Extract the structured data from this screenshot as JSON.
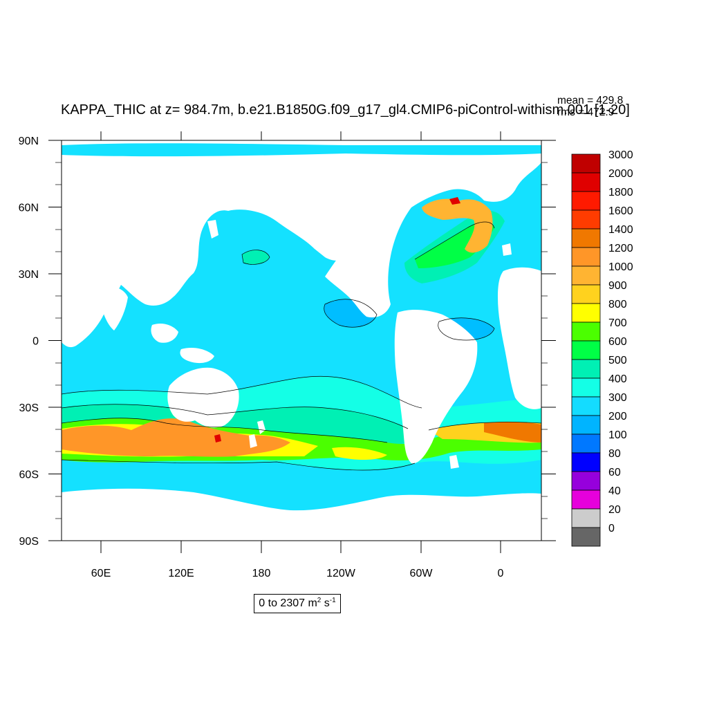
{
  "title": "KAPPA_THIC at z= 984.7m, b.e21.B1850G.f09_g17_gl4.CMIP6-piControl-withism.001 [1-20]",
  "stats": {
    "mean_label": "mean = 429.8",
    "rms_label": "rms = 472.9"
  },
  "range": {
    "prefix": "0 to 2307 m",
    "exp1": "2",
    "unit2": " s",
    "exp2": "-1"
  },
  "axes": {
    "lat_ticks": [
      "90N",
      "60N",
      "30N",
      "0",
      "30S",
      "60S",
      "90S"
    ],
    "lon_ticks": [
      "60E",
      "120E",
      "180",
      "120W",
      "60W",
      "0"
    ]
  },
  "colorbar": {
    "levels": [
      "3000",
      "2000",
      "1800",
      "1600",
      "1400",
      "1200",
      "1000",
      "900",
      "800",
      "700",
      "600",
      "500",
      "400",
      "300",
      "200",
      "100",
      "80",
      "60",
      "40",
      "20",
      "0"
    ],
    "colors": [
      "#c00000",
      "#e00000",
      "#ff1a00",
      "#ff3c00",
      "#f07800",
      "#ff9628",
      "#ffb432",
      "#ffd21e",
      "#ffff00",
      "#4bff00",
      "#00ff46",
      "#00f0b4",
      "#14ffe6",
      "#14dcff",
      "#00b4ff",
      "#0078ff",
      "#0000ff",
      "#9600dc",
      "#e600dc",
      "#cccccc",
      "#666666"
    ]
  },
  "map_colors": {
    "ocean_base": "#14e1ff",
    "deep_blue": "#00beff",
    "teal": "#00f0b4",
    "cyan_light": "#14ffe6",
    "green": "#4bff00",
    "green2": "#00ff46",
    "yellow": "#ffff00",
    "yellow_orange": "#ffd21e",
    "orange_light": "#ffb432",
    "orange": "#ff9628",
    "dark_orange": "#f07800",
    "red": "#e00000",
    "land": "#ffffff"
  }
}
